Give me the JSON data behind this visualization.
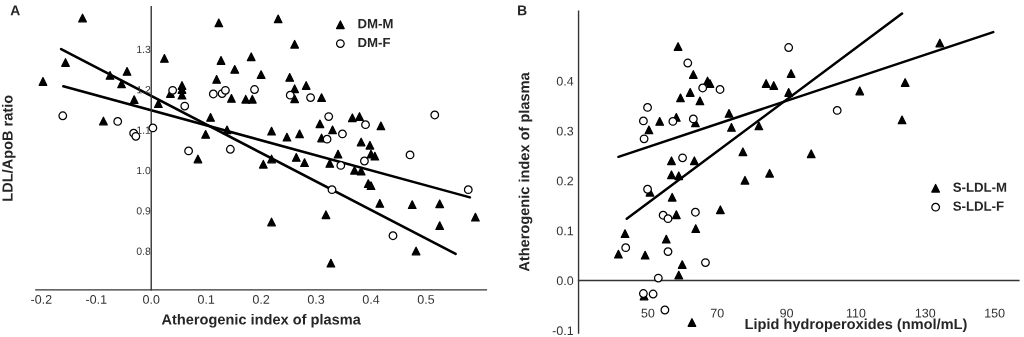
{
  "chart_data": [
    {
      "type": "scatter",
      "title": "A",
      "xlabel": "Atherogenic index of plasma",
      "ylabel": "LDL/ApoB ratio",
      "xlim": [
        -0.21,
        0.61
      ],
      "ylim": [
        0.704,
        1.405
      ],
      "xticks": [
        -0.2,
        -0.1,
        {
          "value": 0,
          "label": "0.0"
        },
        0.1,
        0.2,
        0.3,
        0.4,
        0.5
      ],
      "yticks": [
        0.8,
        0.9,
        {
          "value": 1,
          "label": "1.0"
        },
        1.1,
        1.2,
        1.3
      ],
      "grid": false,
      "legend": "top right",
      "series": [
        {
          "name": "DM-M",
          "type": "scatter",
          "marker": "triangle",
          "color": "#000000",
          "x": [
            -0.125,
            -0.197,
            -0.156,
            -0.075,
            -0.044,
            -0.054,
            -0.031,
            -0.087,
            0.013,
            0.024,
            0.035,
            0.056,
            0.056,
            0.056,
            0.099,
            0.108,
            0.085,
            0.123,
            0.127,
            0.119,
            0.146,
            0.138,
            0.152,
            0.182,
            0.2,
            0.172,
            0.184,
            0.219,
            0.204,
            0.219,
            0.219,
            0.231,
            0.261,
            0.252,
            0.261,
            0.261,
            0.27,
            0.247,
            0.264,
            0.279,
            0.282,
            0.31,
            0.307,
            0.33,
            0.31,
            0.34,
            0.325,
            0.318,
            0.327,
            0.366,
            0.379,
            0.382,
            0.398,
            0.4,
            0.407,
            0.37,
            0.382,
            0.395,
            0.4,
            0.418,
            0.416,
            0.475,
            0.525,
            0.525,
            0.482,
            0.59
          ],
          "values": [
            1.377,
            1.22,
            1.267,
            1.235,
            1.245,
            1.214,
            1.175,
            1.122,
            1.165,
            1.277,
            1.19,
            1.21,
            1.2,
            1.186,
            1.089,
            1.131,
            1.028,
            1.365,
            1.272,
            1.225,
            1.178,
            1.1,
            1.25,
            1.281,
            1.237,
            1.176,
            1.176,
            1.097,
            1.015,
            1.028,
            0.872,
            1.375,
            1.312,
            1.23,
            1.202,
            1.177,
            1.09,
            1.082,
            1.032,
            1.019,
            1.21,
            1.18,
            1.115,
            1.1,
            1.08,
            1.04,
            1.017,
            0.89,
            0.77,
            1.13,
            1.133,
            1.07,
            1.062,
            1.04,
            1.035,
            1.0,
            0.998,
            0.967,
            0.962,
            1.11,
            0.918,
            0.915,
            0.917,
            0.863,
            0.8,
            0.884
          ]
        },
        {
          "name": "DM-F",
          "type": "scatter",
          "marker": "circle",
          "color": "#000000",
          "x": [
            -0.161,
            -0.061,
            -0.032,
            -0.028,
            0.003,
            0.039,
            0.061,
            0.068,
            0.144,
            0.113,
            0.129,
            0.135,
            0.188,
            0.253,
            0.29,
            0.323,
            0.32,
            0.348,
            0.39,
            0.388,
            0.345,
            0.329,
            0.44,
            0.471,
            0.516,
            0.577
          ],
          "values": [
            1.135,
            1.121,
            1.092,
            1.084,
            1.105,
            1.198,
            1.159,
            1.048,
            1.052,
            1.189,
            1.19,
            1.198,
            1.2,
            1.186,
            1.18,
            1.133,
            1.077,
            1.09,
            1.113,
            1.023,
            1.012,
            0.952,
            0.838,
            1.038,
            1.137,
            0.952
          ]
        },
        {
          "type": "line",
          "color": "#000000",
          "x": [
            -0.164,
            0.554
          ],
          "values": [
            1.3,
            0.793
          ]
        },
        {
          "type": "line",
          "color": "#000000",
          "x": [
            -0.16,
            0.58
          ],
          "values": [
            1.208,
            0.933
          ]
        }
      ]
    },
    {
      "type": "scatter",
      "title": "B",
      "xlabel": "Lipid hydroperoxides (nmol/mL)",
      "ylabel": "Atherogenic index of plasma",
      "xlim": [
        30,
        157
      ],
      "ylim": [
        -0.105,
        0.54
      ],
      "xticks": [
        50,
        70,
        90,
        110,
        130,
        150
      ],
      "yticks": [
        -0.1,
        {
          "value": 0,
          "label": "0.0"
        },
        0.1,
        0.2,
        0.3,
        0.4
      ],
      "grid": false,
      "legend": "right",
      "series": [
        {
          "name": "S-LDL-M",
          "type": "scatter",
          "marker": "triangle",
          "color": "#000000",
          "x": [
            58.7,
            63.1,
            62.2,
            59.4,
            65.0,
            67.2,
            67.9,
            58.2,
            63.7,
            53.4,
            50.3,
            73.4,
            74.1,
            77.4,
            78.0,
            56.8,
            56.8,
            58.9,
            63.4,
            50.6,
            57.0,
            58.2,
            70.9,
            63.8,
            43.4,
            55.3,
            41.5,
            49.2,
            59.9,
            58.9,
            48.9,
            62.7,
            82.0,
            84.1,
            86.3,
            85.1,
            91.3,
            90.6,
            97.1,
            111.1,
            123.3,
            124.2,
            134.2
          ],
          "values": [
            0.469,
            0.413,
            0.377,
            0.366,
            0.36,
            0.4,
            0.395,
            0.327,
            0.316,
            0.319,
            0.302,
            0.335,
            0.307,
            0.258,
            0.201,
            0.24,
            0.212,
            0.21,
            0.24,
            0.177,
            0.167,
            0.132,
            0.142,
            0.104,
            0.094,
            0.083,
            0.053,
            0.051,
            0.032,
            0.011,
            -0.031,
            -0.084,
            0.31,
            0.395,
            0.391,
            0.215,
            0.415,
            0.377,
            0.254,
            0.38,
            0.322,
            0.397,
            0.476
          ]
        },
        {
          "name": "S-LDL-F",
          "type": "scatter",
          "marker": "circle",
          "color": "#000000",
          "x": [
            61.5,
            65.8,
            70.8,
            49.9,
            48.7,
            57.2,
            63.1,
            48.9,
            60.0,
            49.9,
            63.7,
            54.4,
            55.8,
            55.8,
            43.6,
            66.6,
            53.0,
            48.7,
            51.5,
            54.9,
            90.6,
            104.6
          ],
          "values": [
            0.436,
            0.386,
            0.383,
            0.347,
            0.32,
            0.319,
            0.324,
            0.284,
            0.246,
            0.183,
            0.137,
            0.131,
            0.124,
            0.058,
            0.066,
            0.036,
            0.005,
            -0.026,
            -0.027,
            -0.059,
            0.467,
            0.341
          ]
        },
        {
          "type": "line",
          "color": "#000000",
          "x": [
            41.5,
            149.6
          ],
          "values": [
            0.248,
            0.498
          ]
        },
        {
          "type": "line",
          "color": "#000000",
          "x": [
            43.9,
            123.3
          ],
          "values": [
            0.124,
            0.535
          ]
        }
      ]
    }
  ]
}
